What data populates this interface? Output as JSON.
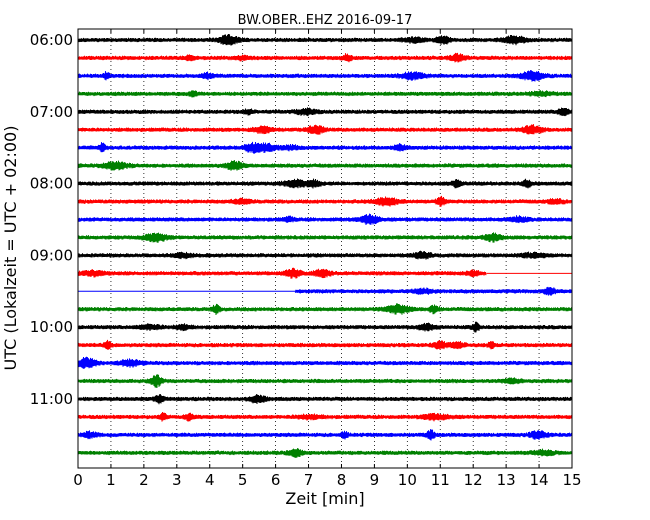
{
  "chart_data": {
    "type": "line",
    "title": "BW.OBER..EHZ 2016-09-17",
    "xlabel": "Zeit  [min]",
    "ylabel": "UTC (Lokalzeit = UTC + 02:00)",
    "xlim": [
      0,
      15
    ],
    "x_ticks": [
      0,
      1,
      2,
      3,
      4,
      5,
      6,
      7,
      8,
      9,
      10,
      11,
      12,
      13,
      14,
      15
    ],
    "x_tick_labels": [
      "0",
      "1",
      "2",
      "3",
      "4",
      "5",
      "6",
      "7",
      "8",
      "9",
      "10",
      "11",
      "12",
      "13",
      "14",
      "15"
    ],
    "y_tick_labels": [
      {
        "label": "06:00",
        "row": 0
      },
      {
        "label": "07:00",
        "row": 4
      },
      {
        "label": "08:00",
        "row": 8
      },
      {
        "label": "09:00",
        "row": 12
      },
      {
        "label": "10:00",
        "row": 16
      },
      {
        "label": "11:00",
        "row": 20
      }
    ],
    "grid": "vertical dotted at each minute",
    "legend": "none",
    "row_minutes": 15,
    "colors": [
      "#000000",
      "#ff0000",
      "#0000ff",
      "#008000"
    ],
    "rows": [
      {
        "start_time": "06:00",
        "color": "#000000",
        "data_start_min": 0,
        "data_end_min": 15
      },
      {
        "start_time": "06:15",
        "color": "#ff0000",
        "data_start_min": 0,
        "data_end_min": 15
      },
      {
        "start_time": "06:30",
        "color": "#0000ff",
        "data_start_min": 0,
        "data_end_min": 15
      },
      {
        "start_time": "06:45",
        "color": "#008000",
        "data_start_min": 0,
        "data_end_min": 15
      },
      {
        "start_time": "07:00",
        "color": "#000000",
        "data_start_min": 0,
        "data_end_min": 15
      },
      {
        "start_time": "07:15",
        "color": "#ff0000",
        "data_start_min": 0,
        "data_end_min": 15
      },
      {
        "start_time": "07:30",
        "color": "#0000ff",
        "data_start_min": 0,
        "data_end_min": 15
      },
      {
        "start_time": "07:45",
        "color": "#008000",
        "data_start_min": 0,
        "data_end_min": 15
      },
      {
        "start_time": "08:00",
        "color": "#000000",
        "data_start_min": 0,
        "data_end_min": 15
      },
      {
        "start_time": "08:15",
        "color": "#ff0000",
        "data_start_min": 0,
        "data_end_min": 15
      },
      {
        "start_time": "08:30",
        "color": "#0000ff",
        "data_start_min": 0,
        "data_end_min": 15
      },
      {
        "start_time": "08:45",
        "color": "#008000",
        "data_start_min": 0,
        "data_end_min": 15
      },
      {
        "start_time": "09:00",
        "color": "#000000",
        "data_start_min": 0,
        "data_end_min": 15
      },
      {
        "start_time": "09:15",
        "color": "#ff0000",
        "data_start_min": 0,
        "data_end_min": 12.4
      },
      {
        "start_time": "09:30",
        "color": "#0000ff",
        "data_start_min": 6.6,
        "data_end_min": 15
      },
      {
        "start_time": "09:45",
        "color": "#008000",
        "data_start_min": 0,
        "data_end_min": 15
      },
      {
        "start_time": "10:00",
        "color": "#000000",
        "data_start_min": 0,
        "data_end_min": 15
      },
      {
        "start_time": "10:15",
        "color": "#ff0000",
        "data_start_min": 0,
        "data_end_min": 15
      },
      {
        "start_time": "10:30",
        "color": "#0000ff",
        "data_start_min": 0,
        "data_end_min": 15
      },
      {
        "start_time": "10:45",
        "color": "#008000",
        "data_start_min": 0,
        "data_end_min": 15
      },
      {
        "start_time": "11:00",
        "color": "#000000",
        "data_start_min": 0,
        "data_end_min": 15
      },
      {
        "start_time": "11:15",
        "color": "#ff0000",
        "data_start_min": 0,
        "data_end_min": 15
      },
      {
        "start_time": "11:30",
        "color": "#0000ff",
        "data_start_min": 0,
        "data_end_min": 15
      },
      {
        "start_time": "11:45",
        "color": "#008000",
        "data_start_min": 0,
        "data_end_min": 15
      }
    ]
  }
}
